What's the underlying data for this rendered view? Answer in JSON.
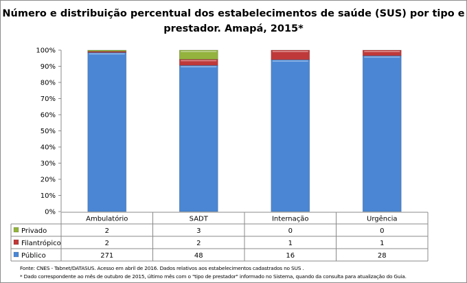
{
  "chart_data": {
    "type": "bar",
    "stacked": "percent",
    "title_line1": "Número e distribuição percentual dos estabelecimentos de saúde (SUS) por tipo e",
    "title_line2": "prestador. Amapá, 2015*",
    "categories": [
      "Ambulatório",
      "SADT",
      "Internação",
      "Urgência"
    ],
    "series": [
      {
        "name": "Público",
        "values": [
          271,
          48,
          16,
          28
        ],
        "color": "#4a86d4"
      },
      {
        "name": "Filantrópico",
        "values": [
          2,
          2,
          1,
          1
        ],
        "color": "#c0393a"
      },
      {
        "name": "Privado",
        "values": [
          2,
          3,
          0,
          0
        ],
        "color": "#93b33e"
      }
    ],
    "table_row_order": [
      "Privado",
      "Filantrópico",
      "Público"
    ],
    "y_ticks": [
      "0%",
      "10%",
      "20%",
      "30%",
      "40%",
      "50%",
      "60%",
      "70%",
      "80%",
      "90%",
      "100%"
    ],
    "ylim": [
      0,
      100
    ],
    "grid": false,
    "legend": "data-table"
  },
  "notes": {
    "source": "Fonte: CNES - Tabnet/DATASUS. Acesso em abril de 2016.  Dados relativos aos estabelecimentos cadastrados no SUS .",
    "footnote": "* Dado correspondente ao mês de  outubro de 2015, último mês com o \"tipo de prestador\" informado no Sistema, quando da consulta para atualização do Guia."
  }
}
